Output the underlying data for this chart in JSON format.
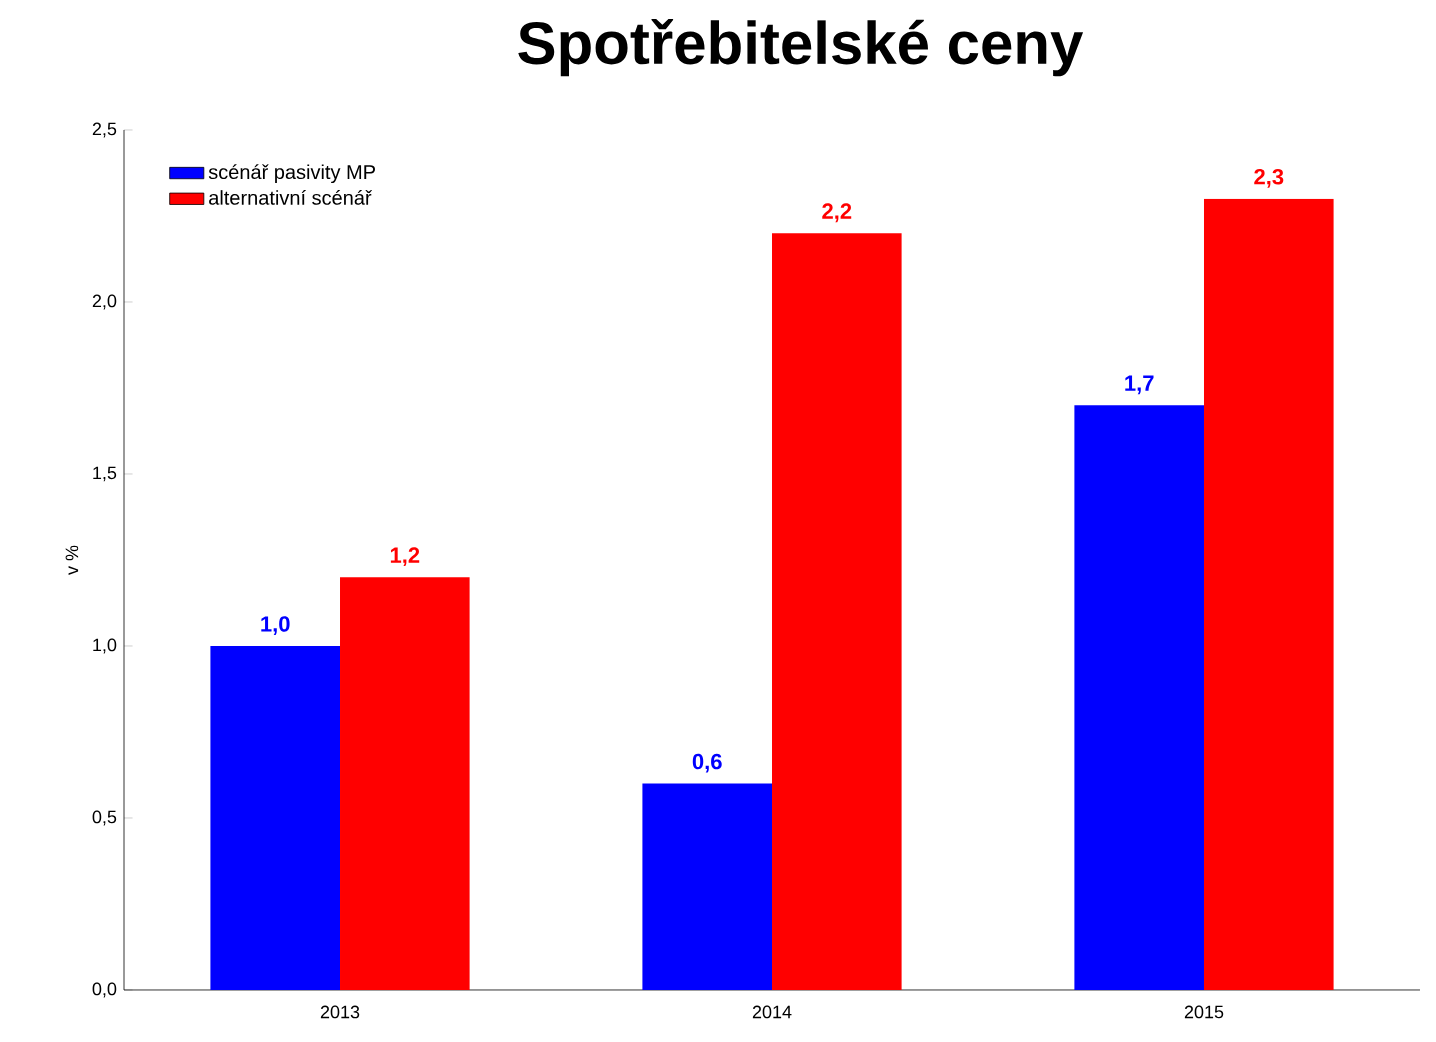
{
  "chart_data": {
    "type": "bar",
    "title": "Spotřebitelské ceny",
    "ylabel": "v %",
    "categories": [
      "2013",
      "2014",
      "2015"
    ],
    "series": [
      {
        "name": "scénář pasivity MP",
        "color": "#0000ff",
        "values": [
          1.0,
          0.6,
          1.7
        ],
        "value_labels": [
          "1,0",
          "0,6",
          "1,7"
        ]
      },
      {
        "name": "alternativní scénář",
        "color": "#ff0000",
        "values": [
          1.2,
          2.2,
          2.3
        ],
        "value_labels": [
          "1,2",
          "2,2",
          "2,3"
        ]
      }
    ],
    "ylim": [
      0,
      2.5
    ],
    "yticks": [
      {
        "value": 0,
        "label": "0,0"
      },
      {
        "value": 0.5,
        "label": "0,5"
      },
      {
        "value": 1.0,
        "label": "1,0"
      },
      {
        "value": 1.5,
        "label": "1,5"
      },
      {
        "value": 2.0,
        "label": "2,0"
      },
      {
        "value": 2.5,
        "label": "2,5"
      }
    ],
    "legend": "top left",
    "grid": false
  }
}
